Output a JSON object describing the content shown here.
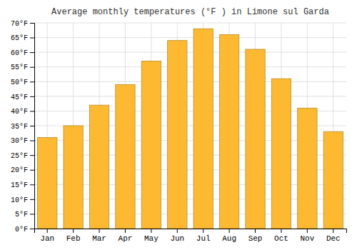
{
  "chart_data": {
    "type": "bar",
    "title": "Average monthly temperatures (°F ) in Limone sul Garda",
    "categories": [
      "Jan",
      "Feb",
      "Mar",
      "Apr",
      "May",
      "Jun",
      "Jul",
      "Aug",
      "Sep",
      "Oct",
      "Nov",
      "Dec"
    ],
    "values": [
      31,
      35,
      42,
      49,
      57,
      64,
      68,
      66,
      61,
      51,
      41,
      33
    ],
    "color": "#FDB931",
    "ylim": [
      0,
      70
    ],
    "yticks": [
      {
        "value": 0,
        "label": "0°F"
      },
      {
        "value": 5,
        "label": "5°F"
      },
      {
        "value": 10,
        "label": "10°F"
      },
      {
        "value": 15,
        "label": "15°F"
      },
      {
        "value": 20,
        "label": "20°F"
      },
      {
        "value": 25,
        "label": "25°F"
      },
      {
        "value": 30,
        "label": "30°F"
      },
      {
        "value": 35,
        "label": "35°F"
      },
      {
        "value": 40,
        "label": "40°F"
      },
      {
        "value": 45,
        "label": "45°F"
      },
      {
        "value": 50,
        "label": "50°F"
      },
      {
        "value": 55,
        "label": "55°F"
      },
      {
        "value": 60,
        "label": "60°F"
      },
      {
        "value": 65,
        "label": "65°F"
      },
      {
        "value": 70,
        "label": "70°F"
      }
    ],
    "grid": true
  }
}
